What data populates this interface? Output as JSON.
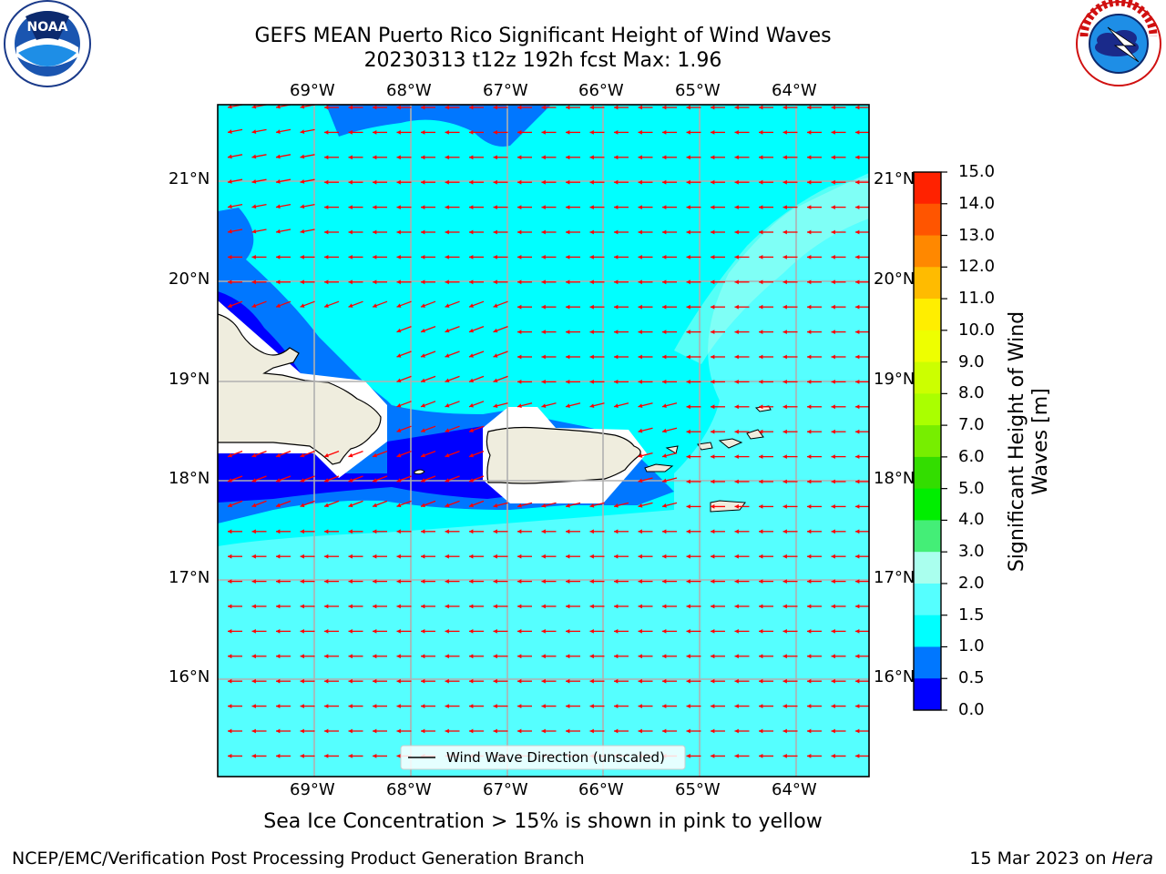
{
  "title": {
    "line1": "GEFS MEAN Puerto Rico Significant Height of Wind Waves",
    "line2": "20230313 t12z 192h fcst   Max: 1.96"
  },
  "map": {
    "lon_ticks": [
      "69°W",
      "68°W",
      "67°W",
      "66°W",
      "65°W",
      "64°W"
    ],
    "lat_ticks": [
      "21°N",
      "20°N",
      "19°N",
      "18°N",
      "17°N",
      "16°N"
    ],
    "legend_label": "Wind Wave Direction (unscaled)",
    "background_color": "#00ffff",
    "land_color": "#efedde",
    "arrow_color": "#ff0000"
  },
  "colorbar": {
    "title": "Significant Height of Wind Waves [m]",
    "ticks": [
      "15.0",
      "14.0",
      "13.0",
      "12.0",
      "11.0",
      "10.0",
      "9.0",
      "8.0",
      "7.0",
      "6.0",
      "5.0",
      "4.0",
      "3.0",
      "2.0",
      "1.5",
      "1.0",
      "0.5",
      "0.0"
    ],
    "colors_top_to_bottom": [
      "#ff0000",
      "#ff2200",
      "#ff5500",
      "#ff8800",
      "#ffbb00",
      "#ffee00",
      "#eeff00",
      "#ccff00",
      "#aaff00",
      "#77ee00",
      "#33dd00",
      "#00ee00",
      "#44ee77",
      "#aaffee",
      "#55ffff",
      "#00ffff",
      "#0077ff",
      "#0000ff"
    ]
  },
  "logos": {
    "noaa": "NOAA",
    "nws": "NATIONAL WEATHER SERVICE"
  },
  "caption": "Sea Ice Concentration > 15% is shown in pink to yellow",
  "footer": {
    "left": "NCEP/EMC/Verification Post Processing Product Generation Branch",
    "right_prefix": "15 Mar 2023 on ",
    "right_host": "Hera"
  }
}
